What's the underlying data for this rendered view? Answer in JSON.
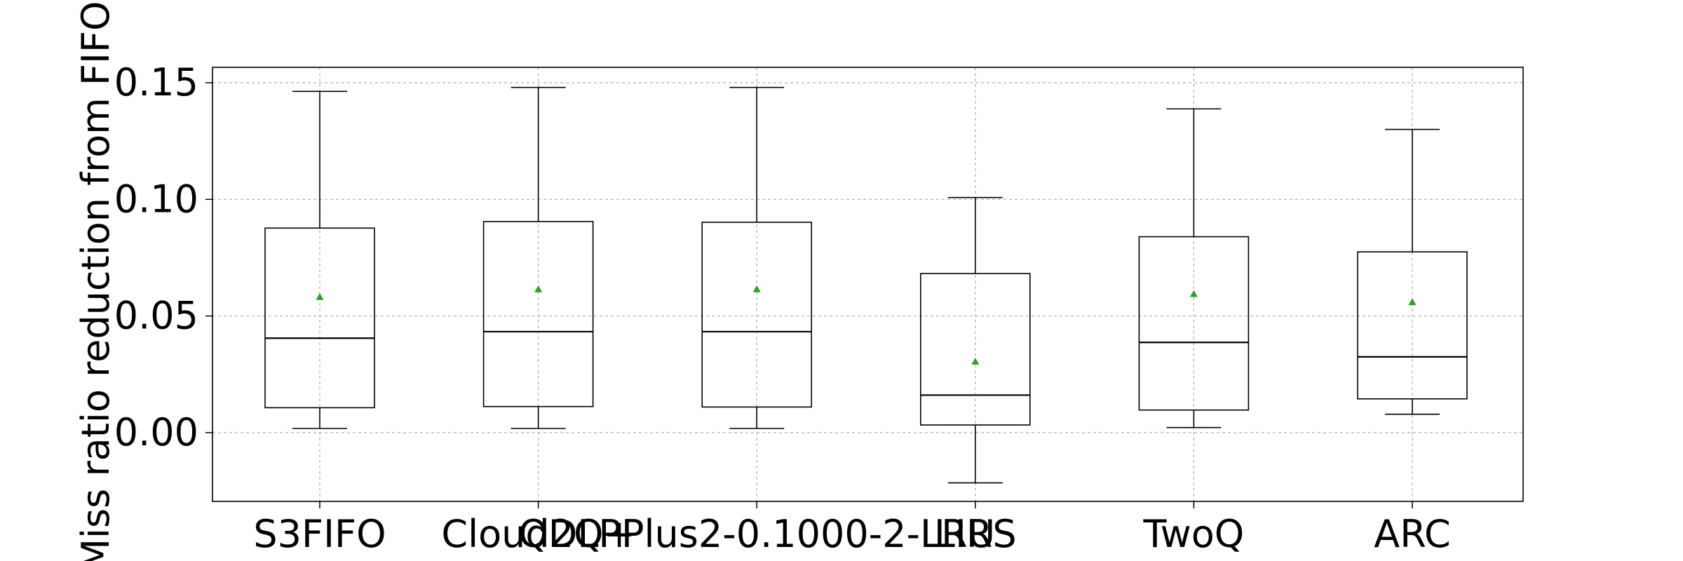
{
  "chart_data": {
    "type": "box",
    "ylabel": "Miss ratio reduction from FIFO",
    "ylim": [
      -0.03,
      0.157
    ],
    "yticks": [
      0.0,
      0.05,
      0.1,
      0.15
    ],
    "ytick_labels": [
      "0.00",
      "0.05",
      "0.10",
      "0.15"
    ],
    "grid": true,
    "categories": [
      "S3FIFO",
      "Cloud2Q+",
      "QDLPPlus2-0.1000-2-LRU",
      "LIRS",
      "TwoQ",
      "ARC"
    ],
    "tick_labels_rendered": [
      "S3FIFO",
      "Cloud2Q+",
      "QDLPPlus2-0.1000-2-LRU",
      "LIRS",
      "TwoQ",
      "ARC"
    ],
    "boxes": [
      {
        "name": "S3FIFO",
        "whisker_low": 0.0018,
        "q1": 0.0107,
        "median": 0.0405,
        "q3": 0.0877,
        "whisker_high": 0.1463,
        "mean": 0.0582
      },
      {
        "name": "Cloud2Q+",
        "whisker_low": 0.0018,
        "q1": 0.0112,
        "median": 0.0433,
        "q3": 0.0905,
        "whisker_high": 0.148,
        "mean": 0.0615
      },
      {
        "name": "QDLPPlus2-0.1000-2-LRU",
        "whisker_low": 0.0018,
        "q1": 0.011,
        "median": 0.0433,
        "q3": 0.0902,
        "whisker_high": 0.148,
        "mean": 0.0615
      },
      {
        "name": "LIRS",
        "whisker_low": -0.0215,
        "q1": 0.0033,
        "median": 0.0161,
        "q3": 0.0682,
        "whisker_high": 0.1008,
        "mean": 0.0305
      },
      {
        "name": "TwoQ",
        "whisker_low": 0.0022,
        "q1": 0.0097,
        "median": 0.0387,
        "q3": 0.084,
        "whisker_high": 0.1388,
        "mean": 0.0595
      },
      {
        "name": "ARC",
        "whisker_low": 0.0079,
        "q1": 0.0145,
        "median": 0.0325,
        "q3": 0.0775,
        "whisker_high": 0.13,
        "mean": 0.056
      }
    ],
    "colors": {
      "box": "#000000",
      "median": "#000000",
      "mean_marker": "#2ca02c",
      "grid": "#b0b0b0",
      "axes": "#000000"
    }
  }
}
